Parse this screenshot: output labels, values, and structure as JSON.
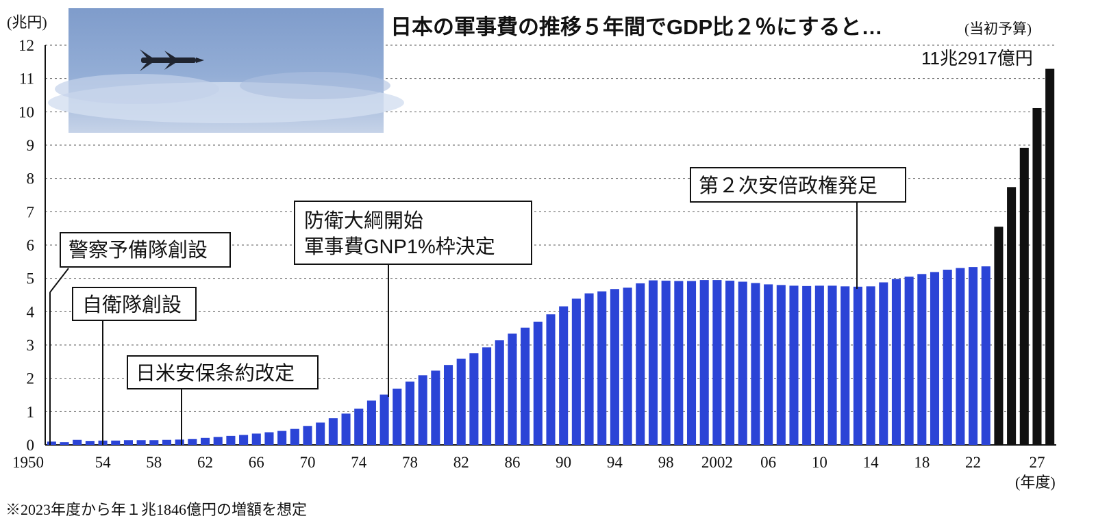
{
  "chart_data": {
    "type": "bar",
    "title": "日本の軍事費の推移５年間でGDP比２％にすると…",
    "title_note": "(当初予算)",
    "ylabel": "(兆円)",
    "xlabel": "(年度)",
    "ylim": [
      0,
      12
    ],
    "y_ticks": [
      "0",
      "1",
      "2",
      "3",
      "4",
      "5",
      "6",
      "7",
      "8",
      "9",
      "10",
      "11",
      "12"
    ],
    "grid": true,
    "x_start_year": 1950,
    "x_tick_labels": [
      "1950",
      "54",
      "58",
      "62",
      "66",
      "70",
      "74",
      "78",
      "82",
      "86",
      "90",
      "94",
      "98",
      "2002",
      "06",
      "10",
      "14",
      "18",
      "22",
      "27"
    ],
    "colors": {
      "actual": "#2b44d6",
      "projected": "#111111",
      "grid": "#555555",
      "text": "#111111"
    },
    "series": [
      {
        "values": [
          0.1,
          0.08,
          0.15,
          0.12,
          0.13,
          0.13,
          0.14,
          0.14,
          0.14,
          0.15,
          0.16,
          0.18,
          0.21,
          0.24,
          0.27,
          0.3,
          0.34,
          0.38,
          0.42,
          0.48,
          0.57,
          0.67,
          0.8,
          0.94,
          1.09,
          1.33,
          1.51,
          1.69,
          1.9,
          2.09,
          2.23,
          2.4,
          2.59,
          2.75,
          2.93,
          3.14,
          3.34,
          3.52,
          3.7,
          3.92,
          4.16,
          4.39,
          4.55,
          4.61,
          4.68,
          4.72,
          4.85,
          4.94,
          4.93,
          4.92,
          4.92,
          4.95,
          4.95,
          4.93,
          4.9,
          4.86,
          4.82,
          4.8,
          4.78,
          4.77,
          4.78,
          4.78,
          4.76,
          4.75,
          4.76,
          4.88,
          4.98,
          5.05,
          5.13,
          5.19,
          5.26,
          5.31,
          5.34,
          5.36
        ]
      },
      {
        "values": [
          6.55,
          7.74,
          8.92,
          10.11,
          11.29
        ]
      }
    ],
    "annotations": [
      {
        "text": "警察予備隊創設",
        "year": 1950
      },
      {
        "text": "自衛隊創設",
        "year": 1954
      },
      {
        "text": "日米安保条約改定",
        "year": 1960
      },
      {
        "text": "防衛大綱開始\n軍事費GNP1%枠決定",
        "year": 1976
      },
      {
        "text": "第２次安倍政権発足",
        "year": 2012
      }
    ],
    "final_value_label": "11兆2917億円"
  },
  "footnote": "※2023年度から年１兆1846億円の増額を想定",
  "photo": {
    "description_icon": "missile-photo",
    "sky_color": "#8aa3cf",
    "cloud_color": "#c9d6ea"
  }
}
